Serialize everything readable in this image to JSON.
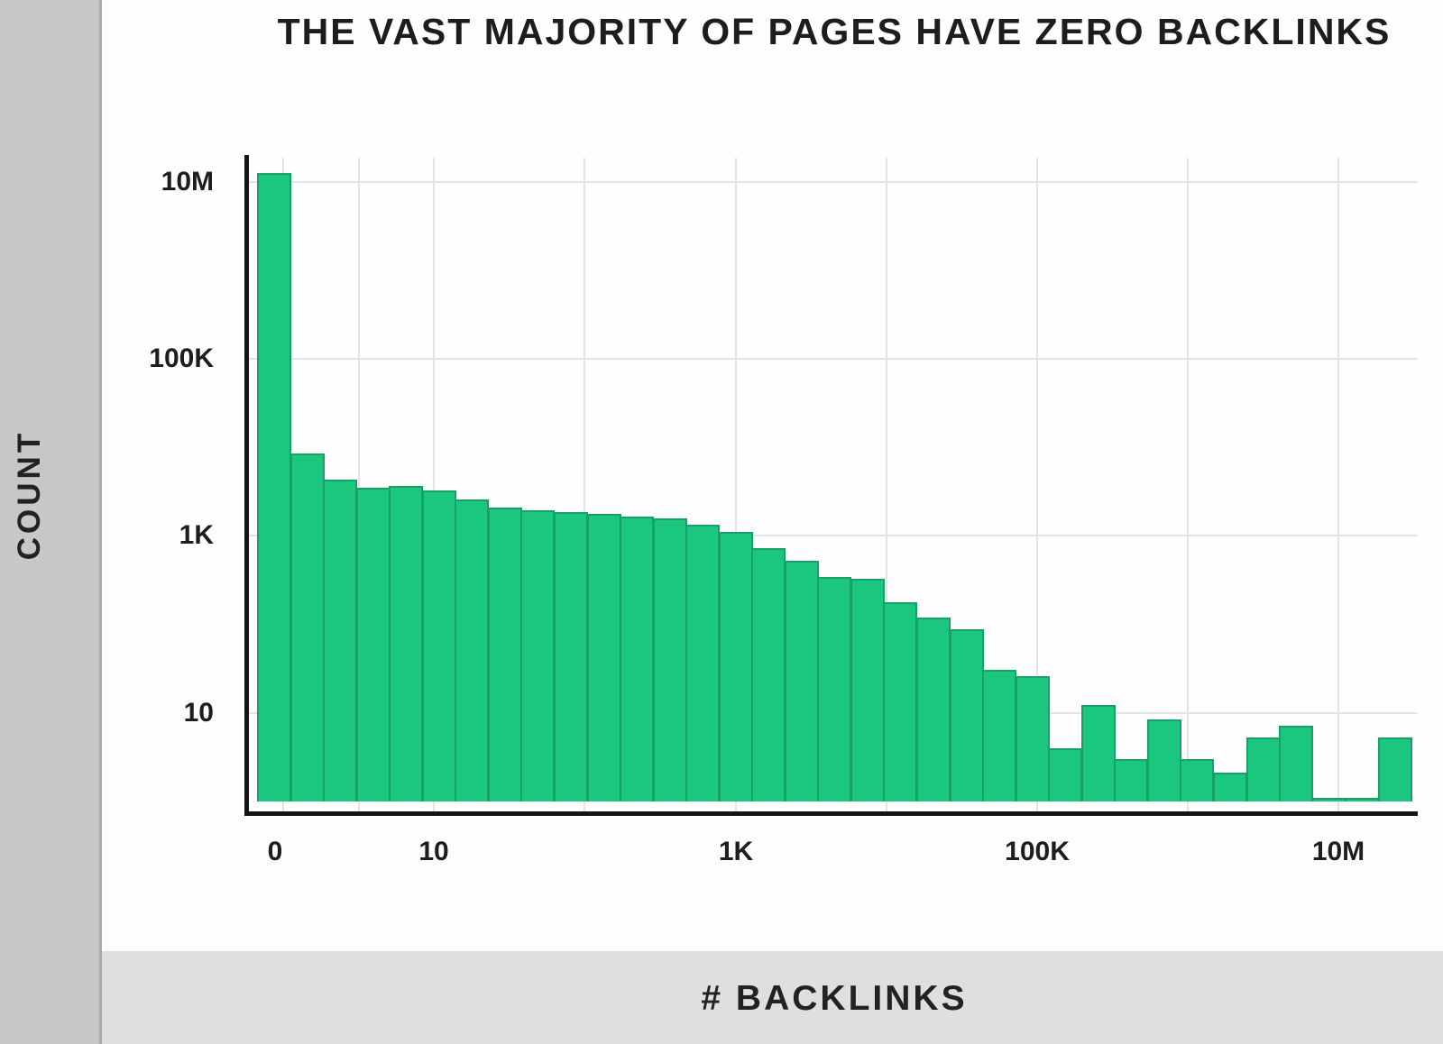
{
  "title": "THE VAST MAJORITY OF PAGES HAVE ZERO BACKLINKS",
  "colors": {
    "bar_fill": "#1bc67e",
    "bar_border": "#16a165",
    "gridline": "#e4e4e4",
    "axis": "#141414",
    "sidebar": "#c7c7c5",
    "bottom_band": "#dfdfde",
    "text": "#1d1d1d"
  },
  "chart_data": {
    "type": "bar",
    "title": "THE VAST MAJORITY OF PAGES HAVE ZERO BACKLINKS",
    "xlabel": "# BACKLINKS",
    "ylabel": "COUNT",
    "x_scale": "log (first bin is the special \"0 backlinks\" bin)",
    "y_scale": "log",
    "grid": "on",
    "legend": "none",
    "x_ticks": [
      "0",
      "10",
      "1K",
      "100K",
      "10M"
    ],
    "y_ticks": [
      "10M",
      "100K",
      "1K",
      "10"
    ],
    "y_range": [
      1,
      20000000
    ],
    "bin_counts": [
      12500000,
      8500,
      4300,
      3500,
      3700,
      3250,
      2600,
      2100,
      1950,
      1860,
      1770,
      1650,
      1570,
      1340,
      1110,
      730,
      520,
      340,
      330,
      178,
      120,
      88,
      31,
      26,
      4,
      12.3,
      3,
      8.4,
      3,
      2.1,
      5.3,
      7.2,
      1.1,
      1.1,
      5.3
    ]
  }
}
